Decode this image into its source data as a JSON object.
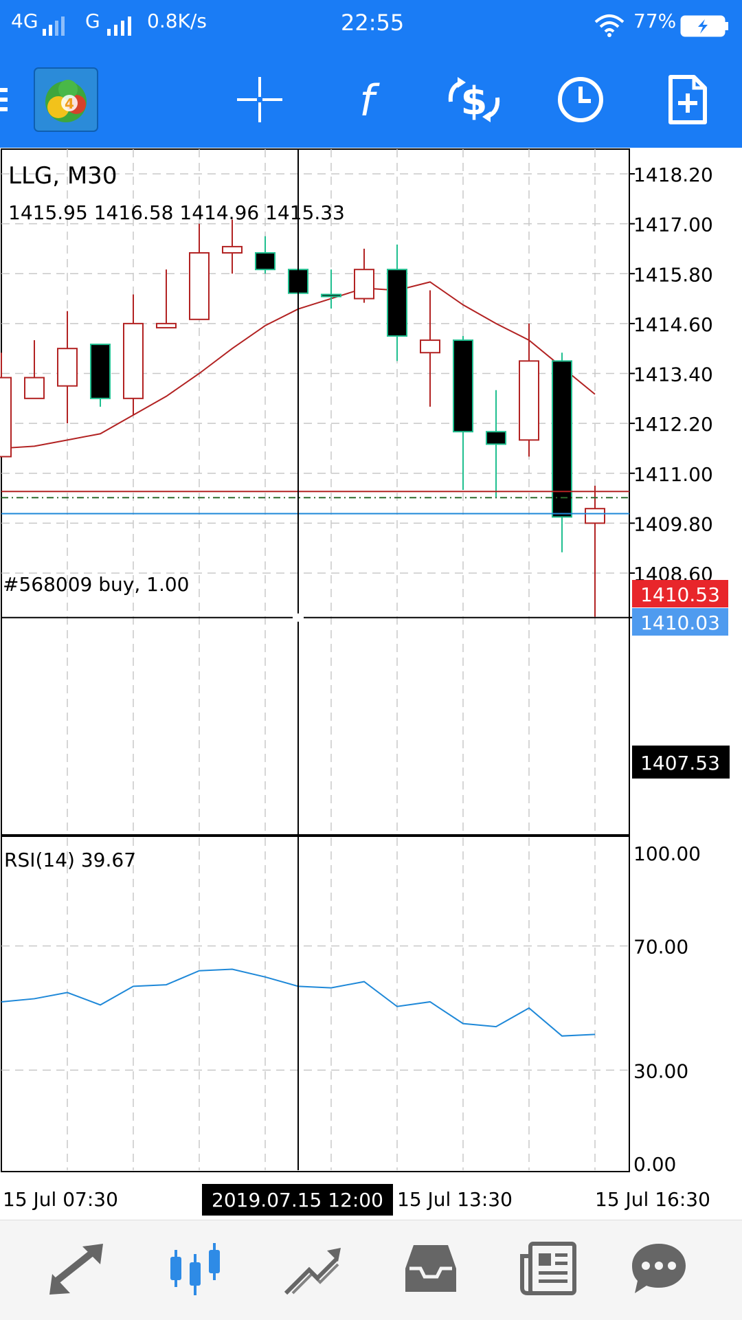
{
  "status_bar": {
    "network1": "4G",
    "network2": "G",
    "speed": "0.8K/s",
    "time": "22:55",
    "battery": "77%"
  },
  "toolbar": {
    "icons": [
      "menu-icon",
      "metatrader-logo",
      "crosshair-icon",
      "indicators-icon",
      "trade-icon",
      "timeframe-icon",
      "new-order-icon"
    ]
  },
  "chart": {
    "symbol_title": "LLG, M30",
    "ohlc": "1415.95 1416.58 1414.96 1415.33",
    "price_ticks": [
      "1418.20",
      "1417.00",
      "1415.80",
      "1414.60",
      "1413.40",
      "1412.20",
      "1411.00",
      "1409.80",
      "1408.60"
    ],
    "order_label": "#568009 buy, 1.00",
    "ask_price": "1410.53",
    "bid_price": "1410.03",
    "crosshair_price": "1407.53",
    "crosshair_time": "2019.07.15 12:00",
    "time_labels": [
      "15 Jul 07:30",
      "15 Jul 13:30",
      "15 Jul 16:30"
    ],
    "rsi_label": "RSI(14) 39.67",
    "rsi_ticks": [
      "100.00",
      "70.00",
      "30.00",
      "0.00"
    ],
    "colors": {
      "bull": "#b22222",
      "bear_border": "#1fbf8f",
      "ma_line": "#b22222",
      "rsi_line": "#1e88d8",
      "ask_bg": "#e8262b",
      "bid_bg": "#4f9bef",
      "crosshair_bg": "#000000"
    }
  },
  "chart_data": {
    "type": "candlestick",
    "title": "LLG, M30",
    "ylim": [
      1407.2,
      1418.9
    ],
    "candles": [
      {
        "o": 1411.4,
        "h": 1413.9,
        "l": 1411.4,
        "c": 1413.3
      },
      {
        "o": 1412.8,
        "h": 1414.2,
        "l": 1412.8,
        "c": 1413.3
      },
      {
        "o": 1413.1,
        "h": 1414.9,
        "l": 1412.2,
        "c": 1414.0
      },
      {
        "o": 1414.1,
        "h": 1414.1,
        "l": 1412.6,
        "c": 1412.8
      },
      {
        "o": 1412.8,
        "h": 1415.3,
        "l": 1412.4,
        "c": 1414.6
      },
      {
        "o": 1414.5,
        "h": 1415.9,
        "l": 1414.5,
        "c": 1414.6
      },
      {
        "o": 1414.7,
        "h": 1417.0,
        "l": 1414.7,
        "c": 1416.3
      },
      {
        "o": 1416.3,
        "h": 1417.1,
        "l": 1415.8,
        "c": 1416.45
      },
      {
        "o": 1416.3,
        "h": 1416.7,
        "l": 1415.8,
        "c": 1415.9
      },
      {
        "o": 1415.9,
        "h": 1415.9,
        "l": 1415.3,
        "c": 1415.33
      },
      {
        "o": 1415.3,
        "h": 1415.9,
        "l": 1414.96,
        "c": 1415.25
      },
      {
        "o": 1415.2,
        "h": 1416.4,
        "l": 1415.1,
        "c": 1415.9
      },
      {
        "o": 1415.9,
        "h": 1416.5,
        "l": 1413.7,
        "c": 1414.3
      },
      {
        "o": 1413.9,
        "h": 1415.4,
        "l": 1412.6,
        "c": 1414.2
      },
      {
        "o": 1414.2,
        "h": 1414.3,
        "l": 1410.6,
        "c": 1412.0
      },
      {
        "o": 1412.0,
        "h": 1413.0,
        "l": 1410.4,
        "c": 1411.7
      },
      {
        "o": 1411.8,
        "h": 1414.6,
        "l": 1411.4,
        "c": 1413.7
      },
      {
        "o": 1413.7,
        "h": 1413.9,
        "l": 1409.1,
        "c": 1409.95
      },
      {
        "o": 1409.8,
        "h": 1410.7,
        "l": 1407.55,
        "c": 1410.15
      }
    ],
    "ma": [
      1411.6,
      1411.65,
      1411.8,
      1411.95,
      1412.4,
      1412.85,
      1413.4,
      1414.0,
      1414.55,
      1414.95,
      1415.2,
      1415.45,
      1415.4,
      1415.6,
      1415.05,
      1414.6,
      1414.2,
      1413.55,
      1412.9
    ],
    "rsi": [
      52,
      53,
      55,
      51,
      57,
      57.5,
      62,
      62.5,
      60,
      57,
      56.5,
      58.5,
      50.5,
      52,
      45,
      44,
      50,
      41,
      41.5
    ]
  },
  "bottom_nav": {
    "icons": [
      "quotes-icon",
      "chart-icon",
      "trade-icon",
      "history-icon",
      "news-icon",
      "chat-icon"
    ],
    "active": "chart-icon"
  }
}
